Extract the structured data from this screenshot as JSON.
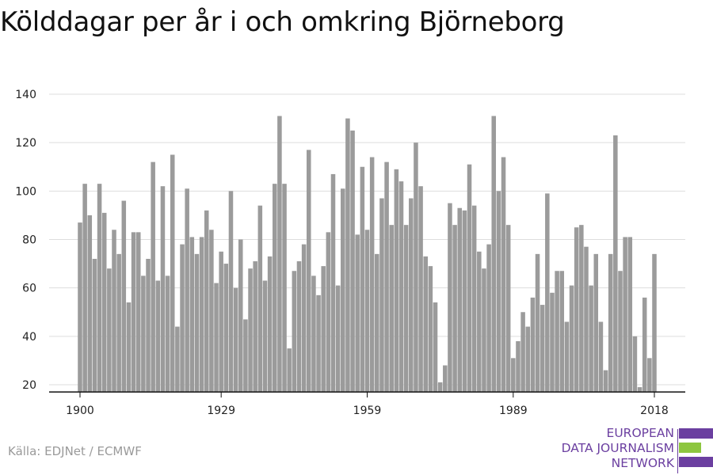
{
  "title": "Kölddagar per år i och omkring Björneborg",
  "source": "Källa: EDJNet / ECMWF",
  "logo": {
    "line1": "EUROPEAN",
    "line2": "DATA JOURNALISM",
    "line3": "NETWORK",
    "colors": {
      "purple": "#6b3fa0",
      "green": "#8dc63f"
    }
  },
  "colors": {
    "bar": "#9b9b9b",
    "grid": "#dddddd",
    "axis": "#111111",
    "text": "#222222"
  },
  "chart_data": {
    "type": "bar",
    "title": "Kölddagar per år i och omkring Björneborg",
    "xlabel": "",
    "ylabel": "",
    "x_start": 1900,
    "x_end": 2018,
    "x_ticks": [
      "1900",
      "1929",
      "1959",
      "1989",
      "2018"
    ],
    "y_ticks": [
      "20",
      "40",
      "60",
      "80",
      "100",
      "120",
      "140"
    ],
    "ylim": [
      17,
      140
    ],
    "grid": true,
    "values": [
      87,
      103,
      90,
      72,
      103,
      91,
      68,
      84,
      74,
      96,
      54,
      83,
      83,
      65,
      72,
      112,
      63,
      102,
      65,
      115,
      44,
      78,
      101,
      81,
      74,
      81,
      92,
      84,
      62,
      75,
      70,
      100,
      60,
      80,
      47,
      68,
      71,
      94,
      63,
      73,
      103,
      131,
      103,
      35,
      67,
      71,
      78,
      117,
      65,
      57,
      69,
      83,
      107,
      61,
      101,
      130,
      125,
      82,
      110,
      84,
      114,
      74,
      97,
      112,
      86,
      109,
      104,
      86,
      97,
      120,
      102,
      73,
      69,
      54,
      21,
      28,
      95,
      86,
      93,
      92,
      111,
      94,
      75,
      68,
      78,
      131,
      100,
      114,
      86,
      31,
      38,
      50,
      44,
      56,
      74,
      53,
      99,
      58,
      67,
      67,
      46,
      61,
      85,
      86,
      77,
      61,
      74,
      46,
      26,
      74,
      123,
      67,
      81,
      81,
      40,
      19,
      56,
      31,
      74
    ]
  }
}
